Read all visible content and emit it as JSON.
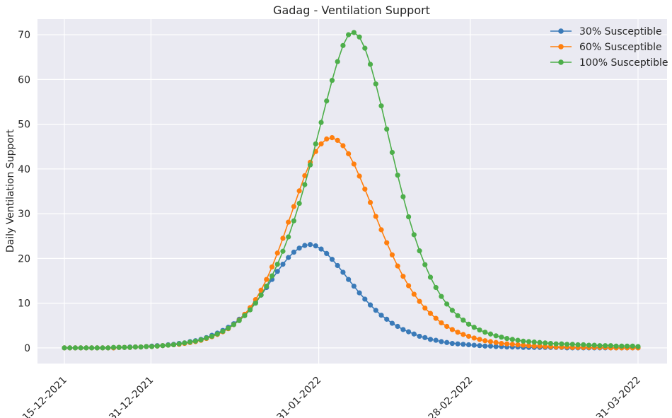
{
  "chart_data": {
    "type": "line",
    "title": "Gadag - Ventilation Support",
    "xlabel": "",
    "ylabel": "Daily Ventilation Support",
    "x_start": "15-12-2021",
    "x_end": "31-03-2022",
    "xticks": [
      "15-12-2021",
      "31-12-2021",
      "31-01-2022",
      "28-02-2022",
      "31-03-2022"
    ],
    "yticks": [
      0,
      10,
      20,
      30,
      40,
      50,
      60,
      70
    ],
    "ylim": [
      -3.5,
      73.5
    ],
    "grid": true,
    "legend_position": "top-right",
    "marker": "circle",
    "series": [
      {
        "name": "30% Susceptible",
        "color": "#3a7ab8",
        "values": [
          0.0,
          0.0,
          0.0,
          0.0,
          0.0,
          0.0,
          0.0,
          0.0,
          0.0,
          0.0,
          0.1,
          0.1,
          0.2,
          0.2,
          0.2,
          0.3,
          0.4,
          0.5,
          0.5,
          0.7,
          0.8,
          1.0,
          1.1,
          1.4,
          1.6,
          1.9,
          2.3,
          2.8,
          3.3,
          3.9,
          4.6,
          5.4,
          6.4,
          7.5,
          8.8,
          10.2,
          11.8,
          13.5,
          15.3,
          17.1,
          18.7,
          20.2,
          21.4,
          22.3,
          22.9,
          23.1,
          22.8,
          22.1,
          21.1,
          19.8,
          18.4,
          16.9,
          15.3,
          13.8,
          12.3,
          10.9,
          9.6,
          8.4,
          7.3,
          6.4,
          5.5,
          4.8,
          4.1,
          3.6,
          3.1,
          2.6,
          2.3,
          1.9,
          1.7,
          1.4,
          1.2,
          1.0,
          0.9,
          0.8,
          0.7,
          0.6,
          0.5,
          0.4,
          0.4,
          0.3,
          0.3,
          0.2,
          0.2,
          0.2,
          0.1,
          0.1,
          0.1,
          0.1,
          0.1,
          0.1,
          0.1,
          0.1,
          0.0,
          0.0,
          0.0,
          0.0,
          0.0,
          0.0,
          0.0,
          0.0,
          0.0,
          0.0,
          0.0,
          0.0,
          0.0,
          0.0
        ]
      },
      {
        "name": "60% Susceptible",
        "color": "#ff7f0e",
        "values": [
          0.0,
          0.0,
          0.0,
          0.0,
          0.0,
          0.0,
          0.0,
          0.0,
          0.0,
          0.0,
          0.1,
          0.1,
          0.1,
          0.2,
          0.2,
          0.3,
          0.3,
          0.4,
          0.5,
          0.6,
          0.7,
          0.8,
          1.0,
          1.2,
          1.4,
          1.7,
          2.1,
          2.5,
          3.0,
          3.6,
          4.3,
          5.2,
          6.2,
          7.5,
          9.0,
          10.8,
          12.9,
          15.3,
          18.1,
          21.2,
          24.5,
          28.1,
          31.6,
          35.1,
          38.5,
          41.5,
          43.9,
          45.6,
          46.7,
          47.0,
          46.4,
          45.2,
          43.4,
          41.1,
          38.4,
          35.5,
          32.5,
          29.4,
          26.4,
          23.5,
          20.8,
          18.3,
          16.0,
          13.9,
          12.0,
          10.4,
          8.9,
          7.7,
          6.6,
          5.6,
          4.8,
          4.1,
          3.5,
          3.0,
          2.6,
          2.2,
          1.9,
          1.6,
          1.4,
          1.2,
          1.0,
          0.9,
          0.8,
          0.7,
          0.6,
          0.5,
          0.4,
          0.4,
          0.3,
          0.3,
          0.2,
          0.2,
          0.2,
          0.1,
          0.1,
          0.1,
          0.1,
          0.1,
          0.1,
          0.1,
          0.0,
          0.0,
          0.0,
          0.0,
          0.0,
          0.0
        ]
      },
      {
        "name": "100% Susceptible",
        "color": "#4dae4a",
        "values": [
          0.0,
          0.0,
          0.0,
          0.0,
          0.0,
          0.0,
          0.0,
          0.0,
          0.0,
          0.1,
          0.1,
          0.1,
          0.1,
          0.2,
          0.2,
          0.3,
          0.3,
          0.4,
          0.5,
          0.6,
          0.7,
          0.9,
          1.1,
          1.3,
          1.5,
          1.8,
          2.2,
          2.6,
          3.1,
          3.7,
          4.4,
          5.2,
          6.1,
          7.2,
          8.5,
          10.0,
          11.8,
          13.8,
          16.1,
          18.7,
          21.6,
          24.8,
          28.4,
          32.3,
          36.5,
          40.9,
          45.6,
          50.4,
          55.2,
          59.8,
          64.0,
          67.6,
          70.0,
          70.5,
          69.5,
          67.0,
          63.4,
          59.0,
          54.1,
          48.9,
          43.7,
          38.6,
          33.8,
          29.3,
          25.3,
          21.7,
          18.6,
          15.8,
          13.5,
          11.5,
          9.8,
          8.4,
          7.2,
          6.2,
          5.3,
          4.6,
          4.0,
          3.5,
          3.1,
          2.7,
          2.4,
          2.1,
          1.9,
          1.7,
          1.5,
          1.4,
          1.3,
          1.2,
          1.1,
          1.0,
          0.9,
          0.9,
          0.8,
          0.8,
          0.7,
          0.7,
          0.6,
          0.6,
          0.5,
          0.5,
          0.5,
          0.4,
          0.4,
          0.4,
          0.4,
          0.3
        ]
      }
    ]
  }
}
